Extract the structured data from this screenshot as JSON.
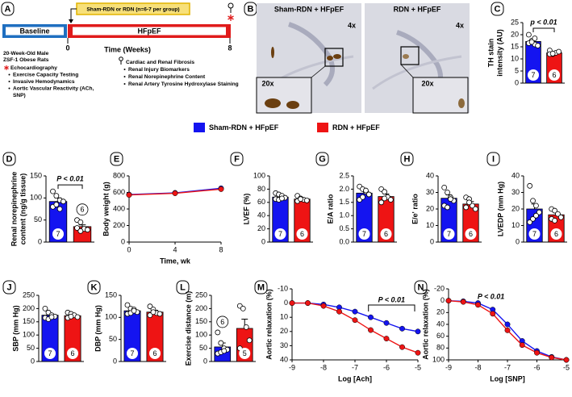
{
  "timeline": {
    "panel": "A",
    "group_bar": "Sham-RDN or RDN (n=6-7 per group)",
    "baseline": "Baseline",
    "hfpef": "HFpEF",
    "start": 0,
    "end": 8,
    "time_label": "Time (Weeks)",
    "cohort": [
      "20-Week-Old Male",
      "ZSF-1 Obese Rats"
    ],
    "baseline_measures": [
      "Echocardiography",
      "Exercise Capacity Testing",
      "Invasive Hemodynamics",
      [
        "Aortic Vascular Reactivity (ACh,",
        "SNP)"
      ]
    ],
    "terminal_measures": [
      "Cardiac and Renal Fibrosis",
      "Renal Injury Biomarkers",
      "Renal Norepinephrine Content",
      "Renal Artery Tyrosine Hydroxylase Staining"
    ]
  },
  "histology": {
    "panel": "B",
    "images": [
      {
        "title": "Sham-RDN + HFpEF",
        "magnification": "4x",
        "inset_magnification": "20x"
      },
      {
        "title": "RDN + HFpEF",
        "magnification": "4x",
        "inset_magnification": "20x"
      }
    ]
  },
  "legend": {
    "entries": [
      {
        "name": "Sham-RDN + HFpEF",
        "color": "#1414f0"
      },
      {
        "name": "RDN + HFpEF",
        "color": "#ee1414"
      }
    ]
  },
  "chart_data": [
    {
      "type": "bar",
      "panel": "C",
      "ylabel": [
        "TH stain",
        "intensity (AU)"
      ],
      "ylim": [
        0,
        25
      ],
      "yticks": [
        0,
        5,
        10,
        15,
        20,
        25
      ],
      "annotation": "p < 0.01",
      "series": [
        {
          "values": [
            17.2
          ],
          "error": [
            1.0
          ],
          "points": [
            20,
            17.5,
            16,
            15.5,
            16.5,
            17,
            18.5
          ],
          "n": 7
        },
        {
          "values": [
            12.5
          ],
          "error": [
            0.4
          ],
          "points": [
            13.5,
            12,
            12.5,
            13,
            12,
            12.2
          ],
          "n": 6
        }
      ]
    },
    {
      "type": "bar",
      "panel": "D",
      "ylabel": [
        "Renal  norepinephrine",
        "content (ng/g tissue)"
      ],
      "ylim": [
        0,
        150
      ],
      "yticks": [
        0,
        50,
        100,
        150
      ],
      "annotation": "P < 0.01",
      "series": [
        {
          "values": [
            92
          ],
          "error": [
            8
          ],
          "points": [
            115,
            105,
            95,
            92,
            80,
            85,
            75
          ],
          "n": 7
        },
        {
          "values": [
            35
          ],
          "error": [
            4
          ],
          "points": [
            50,
            45,
            30,
            28,
            32,
            25
          ],
          "n": 6
        }
      ]
    },
    {
      "type": "line",
      "panel": "E",
      "ylabel": [
        "Body weight  (g)"
      ],
      "xlabel": "Time, wk",
      "x": [
        0,
        4,
        8
      ],
      "xlim": [
        0,
        8
      ],
      "xticks": [
        0,
        4,
        8
      ],
      "ylim": [
        0,
        800
      ],
      "yticks": [
        0,
        200,
        400,
        600,
        800
      ],
      "series": [
        {
          "values": [
            575,
            595,
            650
          ],
          "error": [
            10,
            20,
            25
          ]
        },
        {
          "values": [
            570,
            590,
            640
          ],
          "error": [
            10,
            20,
            25
          ]
        }
      ]
    },
    {
      "type": "bar",
      "panel": "F",
      "ylabel": [
        "LVEF (%)"
      ],
      "ylim": [
        0,
        100
      ],
      "yticks": [
        0,
        20,
        40,
        60,
        80,
        100
      ],
      "series": [
        {
          "values": [
            68
          ],
          "error": [
            2
          ],
          "points": [
            74,
            72,
            70,
            67,
            65,
            64,
            66
          ],
          "n": 7
        },
        {
          "values": [
            65
          ],
          "error": [
            1.5
          ],
          "points": [
            70,
            66,
            64,
            63,
            62,
            65
          ],
          "n": 6
        }
      ]
    },
    {
      "type": "bar",
      "panel": "G",
      "ylabel": [
        "E/A ratio"
      ],
      "ylim": [
        0,
        2.5
      ],
      "yticks": [
        {
          "value": 0,
          "label": "0.0"
        },
        0.5,
        {
          "value": 1,
          "label": "1.0"
        },
        1.5,
        {
          "value": 2,
          "label": "2.0"
        },
        2.5
      ],
      "series": [
        {
          "values": [
            1.85
          ],
          "error": [
            0.1
          ],
          "points": [
            2.1,
            2.0,
            1.9,
            1.8,
            1.6,
            1.7,
            1.95
          ],
          "n": 7
        },
        {
          "values": [
            1.72
          ],
          "error": [
            0.1
          ],
          "points": [
            2.0,
            1.9,
            1.7,
            1.6,
            1.5,
            1.65
          ],
          "n": 6
        }
      ]
    },
    {
      "type": "bar",
      "panel": "H",
      "ylabel": [
        "E/e' ratio"
      ],
      "ylim": [
        0,
        40
      ],
      "yticks": [
        0,
        10,
        20,
        30,
        40
      ],
      "series": [
        {
          "values": [
            26.5
          ],
          "error": [
            2
          ],
          "points": [
            33,
            30,
            27,
            25,
            22,
            21,
            26
          ],
          "n": 7
        },
        {
          "values": [
            23
          ],
          "error": [
            1.5
          ],
          "points": [
            27,
            26,
            22,
            20,
            21,
            24
          ],
          "n": 6
        }
      ]
    },
    {
      "type": "bar",
      "panel": "I",
      "ylabel": [
        "LVEDP (mm Hg)"
      ],
      "ylim": [
        0,
        40
      ],
      "yticks": [
        0,
        10,
        20,
        30,
        40
      ],
      "series": [
        {
          "values": [
            20
          ],
          "error": [
            3
          ],
          "points": [
            34,
            25,
            22,
            18,
            12,
            14,
            16
          ],
          "n": 7
        },
        {
          "values": [
            16.5
          ],
          "error": [
            1.5
          ],
          "points": [
            20,
            19,
            17,
            15,
            14,
            13
          ],
          "n": 6
        }
      ]
    },
    {
      "type": "bar",
      "panel": "J",
      "ylabel": [
        "SBP (mm Hg)"
      ],
      "ylim": [
        0,
        250
      ],
      "yticks": [
        0,
        50,
        100,
        150,
        200,
        250
      ],
      "series": [
        {
          "values": [
            175
          ],
          "error": [
            6
          ],
          "points": [
            200,
            185,
            175,
            170,
            165,
            160,
            168
          ],
          "n": 7
        },
        {
          "values": [
            173
          ],
          "error": [
            5
          ],
          "points": [
            185,
            180,
            175,
            168,
            165,
            170
          ],
          "n": 6
        }
      ]
    },
    {
      "type": "bar",
      "panel": "K",
      "ylabel": [
        "DBP (mm Hg)"
      ],
      "ylim": [
        0,
        150
      ],
      "yticks": [
        0,
        50,
        100,
        150
      ],
      "series": [
        {
          "values": [
            115
          ],
          "error": [
            4
          ],
          "points": [
            128,
            120,
            118,
            112,
            108,
            110,
            115
          ],
          "n": 7
        },
        {
          "values": [
            112
          ],
          "error": [
            4
          ],
          "points": [
            125,
            118,
            110,
            108,
            105,
            112
          ],
          "n": 6
        }
      ]
    },
    {
      "type": "bar",
      "panel": "L",
      "ylabel": [
        "Exercise distance (m)"
      ],
      "ylim": [
        0,
        250
      ],
      "yticks": [
        0,
        50,
        100,
        150,
        200,
        250
      ],
      "series": [
        {
          "values": [
            55
          ],
          "error": [
            15
          ],
          "points": [
            110,
            70,
            50,
            45,
            30,
            35,
            40
          ],
          "n": 6
        },
        {
          "values": [
            125
          ],
          "error": [
            35
          ],
          "points": [
            210,
            200,
            130,
            80,
            50
          ],
          "n": 5
        }
      ]
    },
    {
      "type": "line",
      "panel": "M",
      "ylabel": [
        "Aortic relaxation (%)"
      ],
      "xlabel": "Log [Ach]",
      "x": [
        -9,
        -8.5,
        -8,
        -7.5,
        -7,
        -6.5,
        -6,
        -5.5,
        -5
      ],
      "xlim": [
        -9,
        -5
      ],
      "xticks": [
        -9,
        -8,
        -7,
        -6,
        -5
      ],
      "ylim": [
        -10,
        40
      ],
      "y_inverted": true,
      "yticks": [
        -10,
        0,
        10,
        20,
        30,
        40
      ],
      "annotation": "P < 0.01",
      "series": [
        {
          "values": [
            0,
            0,
            1,
            3,
            6,
            10,
            14,
            18,
            20
          ]
        },
        {
          "values": [
            0,
            0,
            2,
            6,
            12,
            19,
            25,
            31,
            35
          ]
        }
      ]
    },
    {
      "type": "line",
      "panel": "N",
      "ylabel": [
        "Aortic relaxation (%)"
      ],
      "xlabel": "Log [SNP]",
      "x": [
        -9,
        -8.5,
        -8,
        -7.5,
        -7,
        -6.5,
        -6,
        -5.5,
        -5
      ],
      "xlim": [
        -9,
        -5
      ],
      "xticks": [
        -9,
        -8,
        -7,
        -6,
        -5
      ],
      "ylim": [
        -20,
        100
      ],
      "y_inverted": true,
      "yticks": [
        -20,
        0,
        20,
        40,
        60,
        80,
        100
      ],
      "annotation": "P < 0.01",
      "series": [
        {
          "values": [
            0,
            1,
            4,
            15,
            40,
            68,
            85,
            95,
            100
          ]
        },
        {
          "values": [
            0,
            2,
            7,
            22,
            50,
            75,
            88,
            96,
            100
          ]
        }
      ]
    }
  ]
}
